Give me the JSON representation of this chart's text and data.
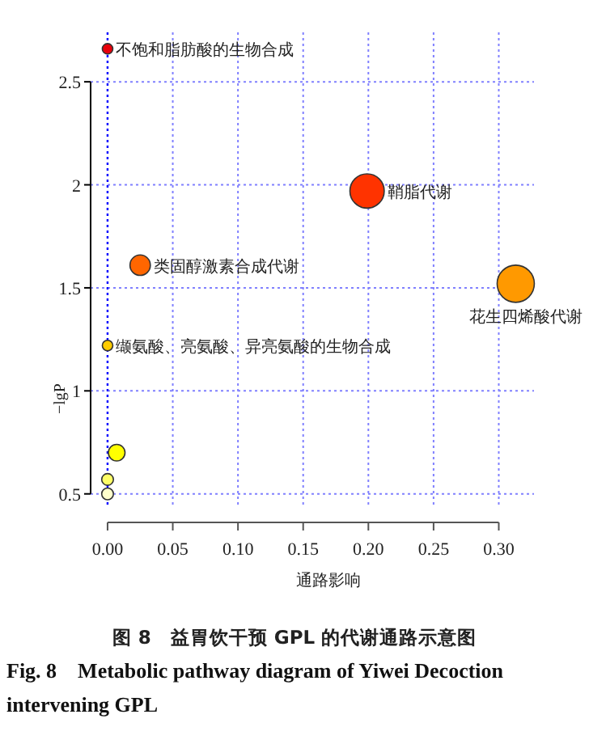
{
  "chart_data": {
    "type": "bubble",
    "xlabel": "通路影响",
    "ylabel": "−lgP",
    "x": [
      0.0,
      0.199,
      0.025,
      0.313,
      0.0,
      0.007,
      0.0,
      0.0
    ],
    "values": [
      2.66,
      1.97,
      1.61,
      1.52,
      1.22,
      0.7,
      0.57,
      0.5
    ],
    "sizes": [
      0.08,
      0.85,
      0.3,
      1,
      0.08,
      0.2,
      0.1,
      0.1
    ],
    "colors": [
      "#e8000b",
      "#ff3300",
      "#ff6600",
      "#ff9900",
      "#ffcc00",
      "#ffff00",
      "#ffff66",
      "#ffffcc"
    ],
    "xlim": [
      -0.013,
      0.327
    ],
    "ylim": [
      0.44,
      2.74
    ],
    "xticks": [
      {
        "value": 0,
        "label": "0.00"
      },
      {
        "value": 0.05,
        "label": "0.05"
      },
      {
        "value": 0.1,
        "label": "0.10"
      },
      {
        "value": 0.15,
        "label": "0.15"
      },
      {
        "value": 0.2,
        "label": "0.20"
      },
      {
        "value": 0.25,
        "label": "0.25"
      },
      {
        "value": 0.3,
        "label": "0.30"
      }
    ],
    "yticks": [
      0.5,
      1.0,
      1.5,
      2.0,
      2.5
    ],
    "grid": true,
    "ref_lines": [
      {
        "axis": "x",
        "value": 0,
        "color": "#0000ff",
        "line_style": "dotted"
      }
    ],
    "annotations": [
      {
        "text": "不饱和脂肪酸的生物合成",
        "x": 0.0,
        "y": 2.66
      },
      {
        "text": "鞘脂代谢",
        "x": 0.199,
        "y": 1.97
      },
      {
        "text": "类固醇激素合成代谢",
        "x": 0.025,
        "y": 1.61
      },
      {
        "text": "花生四烯酸代谢",
        "x": 0.313,
        "y": 1.52
      },
      {
        "text": "缬氨酸、亮氨酸、异亮氨酸的生物合成",
        "x": 0.0,
        "y": 1.22
      },
      "图 8　益胃饮干预 GPL 的代谢通路示意图",
      "Fig. 8　Metabolic pathway diagram of Yiwei Decoction intervening GPL"
    ]
  }
}
